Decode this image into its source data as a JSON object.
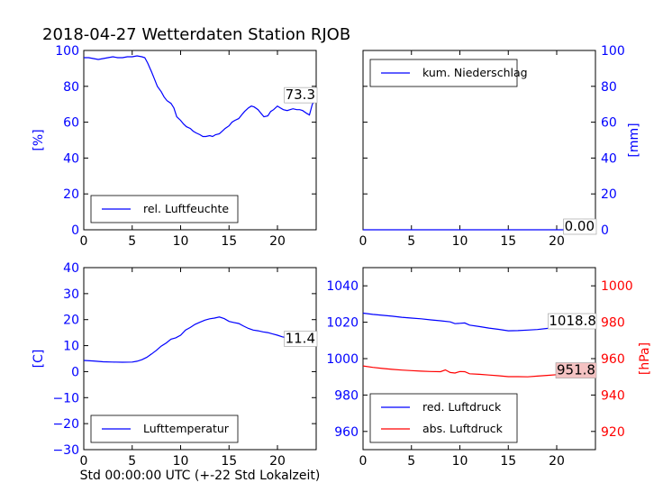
{
  "page": {
    "title": "2018-04-27 Wetterdaten Station RJOB",
    "footer_xlabel": "Std 00:00:00 UTC (+-22 Std Lokalzeit)"
  },
  "colors": {
    "axis_left": "#0000ff",
    "axis_right_pressure": "#ff0000",
    "line_blue": "#0000ff",
    "line_red": "#ff0000",
    "annotation_bg_default": "#ffffff",
    "annotation_bg_red": "#f4c2c2"
  },
  "chart_data": [
    {
      "id": "humidity",
      "type": "line",
      "xlim": [
        0,
        24
      ],
      "ylim": [
        0,
        100
      ],
      "x_ticks": [
        "0",
        "5",
        "10",
        "15",
        "20"
      ],
      "y_ticks": [
        "0",
        "20",
        "40",
        "60",
        "80",
        "100"
      ],
      "ylabel": "[%]",
      "legend_position": "lower-center",
      "annotation": {
        "text": "73.3",
        "x": 24,
        "y": 73.3
      },
      "series": [
        {
          "name": "rel. Luftfeuchte",
          "color": "#0000ff",
          "x": [
            0,
            0.5,
            1,
            1.5,
            2,
            2.5,
            3,
            3.5,
            4,
            4.5,
            5,
            5.5,
            6,
            6.3,
            6.6,
            7,
            7.3,
            7.6,
            8,
            8.3,
            8.6,
            9,
            9.3,
            9.6,
            10,
            10.3,
            10.6,
            11,
            11.3,
            11.6,
            12,
            12.3,
            12.6,
            13,
            13.3,
            13.6,
            14,
            14.3,
            14.6,
            15,
            15.3,
            15.6,
            16,
            16.3,
            16.6,
            17,
            17.3,
            17.6,
            18,
            18.3,
            18.6,
            19,
            19.3,
            19.6,
            20,
            20.3,
            20.6,
            21,
            21.3,
            21.6,
            22,
            22.3,
            22.6,
            23,
            23.3,
            23.6,
            24
          ],
          "y": [
            96,
            96,
            95.5,
            95,
            95.5,
            96,
            96.5,
            96,
            96,
            96.5,
            96.5,
            97,
            96.5,
            96,
            93,
            88,
            84,
            80,
            77,
            74,
            72,
            70.5,
            68,
            63,
            61,
            59,
            57.5,
            56.5,
            55,
            54,
            53,
            52,
            52,
            52.5,
            52,
            53,
            53.5,
            55,
            56.5,
            58,
            60,
            61,
            62,
            64,
            66,
            68,
            69,
            68.5,
            67,
            65,
            63,
            63.5,
            66,
            67,
            69,
            68,
            67,
            66.5,
            67,
            67.5,
            67,
            67,
            66.5,
            65,
            64,
            70,
            73.3
          ]
        }
      ]
    },
    {
      "id": "precip",
      "type": "line",
      "xlim": [
        0,
        24
      ],
      "ylim": [
        0,
        100
      ],
      "x_ticks": [
        "0",
        "5",
        "10",
        "15",
        "20"
      ],
      "y_ticks": [
        "0",
        "20",
        "40",
        "60",
        "80",
        "100"
      ],
      "ylabel": "[mm]",
      "legend_position": "upper-center",
      "annotation": {
        "text": "0.00",
        "x": 24,
        "y": 0
      },
      "series": [
        {
          "name": "kum. Niederschlag",
          "color": "#0000ff",
          "x": [
            0,
            24
          ],
          "y": [
            0,
            0
          ]
        }
      ]
    },
    {
      "id": "temperature",
      "type": "line",
      "xlim": [
        0,
        24
      ],
      "ylim": [
        -30,
        40
      ],
      "x_ticks": [
        "0",
        "5",
        "10",
        "15",
        "20"
      ],
      "y_ticks": [
        "−30",
        "−20",
        "−10",
        "0",
        "10",
        "20",
        "30",
        "40"
      ],
      "ylabel": "[C]",
      "legend_position": "lower-center",
      "annotation": {
        "text": "11.4",
        "x": 24,
        "y": 11.4
      },
      "series": [
        {
          "name": "Lufttemperatur",
          "color": "#0000ff",
          "x": [
            0,
            1,
            2,
            3,
            4,
            5,
            5.5,
            6,
            6.5,
            7,
            7.5,
            8,
            8.5,
            9,
            9.5,
            10,
            10.5,
            11,
            11.5,
            12,
            12.5,
            13,
            13.5,
            14,
            14.5,
            15,
            15.5,
            16,
            16.5,
            17,
            17.5,
            18,
            18.5,
            19,
            19.5,
            20,
            20.5,
            21,
            21.5,
            22,
            22.5,
            23,
            23.5,
            24
          ],
          "y": [
            4.3,
            4.1,
            3.8,
            3.7,
            3.6,
            3.7,
            4,
            4.6,
            5.5,
            6.8,
            8.2,
            9.8,
            11,
            12.5,
            13,
            14,
            16,
            17,
            18.2,
            19,
            19.8,
            20.3,
            20.6,
            21,
            20.4,
            19.3,
            18.9,
            18.5,
            17.5,
            16.6,
            16,
            15.7,
            15.3,
            15,
            14.5,
            14,
            13.4,
            13,
            12.6,
            12.2,
            12,
            11.8,
            11.6,
            11.4
          ]
        }
      ]
    },
    {
      "id": "pressure",
      "type": "line",
      "xlim": [
        0,
        24
      ],
      "ylim_left": [
        950,
        1050
      ],
      "ylim_right": [
        910,
        1010
      ],
      "x_ticks": [
        "0",
        "5",
        "10",
        "15",
        "20"
      ],
      "y_ticks_left": [
        "960",
        "980",
        "1000",
        "1020",
        "1040"
      ],
      "y_ticks_right": [
        "920",
        "940",
        "960",
        "980",
        "1000"
      ],
      "ylabel_right": "[hPa]",
      "legend_position": "lower-center",
      "annotations": [
        {
          "text": "1018.8",
          "x": 24,
          "y": 1018.8,
          "axis": "left"
        },
        {
          "text": "951.8",
          "x": 24,
          "y": 951.8,
          "axis": "right"
        }
      ],
      "series": [
        {
          "name": "red. Luftdruck",
          "color": "#0000ff",
          "axis": "left",
          "x": [
            0,
            1,
            2,
            3,
            4,
            5,
            6,
            7,
            8,
            9,
            9.5,
            10,
            10.5,
            11,
            12,
            13,
            14,
            15,
            16,
            17,
            18,
            19,
            20,
            21,
            22,
            23,
            24
          ],
          "y": [
            1025,
            1024.3,
            1023.8,
            1023.3,
            1022.7,
            1022.3,
            1021.9,
            1021.3,
            1020.8,
            1020.2,
            1019.2,
            1019.4,
            1019.6,
            1018.4,
            1017.6,
            1016.8,
            1016.1,
            1015.3,
            1015.4,
            1015.7,
            1016.0,
            1016.6,
            1017.2,
            1017.7,
            1018.1,
            1018.4,
            1018.8
          ]
        },
        {
          "name": "abs. Luftdruck",
          "color": "#ff0000",
          "axis": "right",
          "x": [
            0,
            1,
            2,
            3,
            4,
            5,
            6,
            7,
            8,
            8.5,
            9,
            9.5,
            10,
            10.5,
            11,
            12,
            13,
            14,
            15,
            16,
            17,
            18,
            19,
            20,
            21,
            22,
            23,
            24
          ],
          "y": [
            956,
            955.2,
            954.6,
            954.1,
            953.7,
            953.4,
            953.1,
            952.9,
            952.8,
            953.8,
            952.4,
            952.1,
            952.9,
            952.8,
            951.7,
            951.4,
            951.0,
            950.6,
            950.1,
            950.1,
            950.0,
            950.4,
            950.8,
            951.2,
            951.4,
            951.6,
            951.7,
            951.8
          ]
        }
      ]
    }
  ]
}
